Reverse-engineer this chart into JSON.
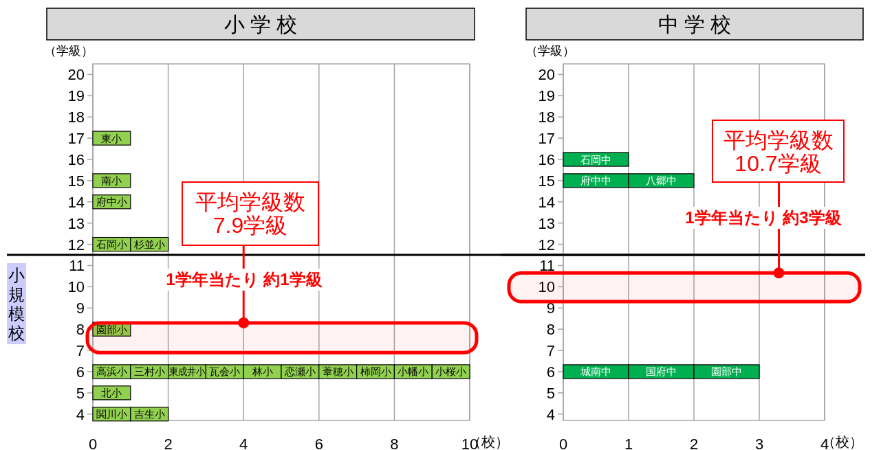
{
  "chart_data": [
    {
      "type": "bar",
      "orientation": "horizontal",
      "stacked": true,
      "title": "小 学 校",
      "ylabel": "（学級）",
      "xlabel": "（校）",
      "x": [
        17,
        15,
        14,
        12,
        8,
        6,
        5,
        4
      ],
      "series": [
        {
          "color": "#92d050",
          "values": [
            1,
            1,
            1,
            1,
            1,
            1,
            1,
            1
          ],
          "value_labels": [
            "東小",
            "南小",
            "府中小",
            "石岡小",
            "園部小",
            "高浜小",
            "北小",
            "関川小"
          ]
        },
        {
          "color": "#92d050",
          "values": [
            null,
            null,
            null,
            1,
            null,
            1,
            null,
            1
          ],
          "value_labels": [
            null,
            null,
            null,
            "杉並小",
            null,
            "三村小",
            null,
            "吉生小"
          ]
        },
        {
          "color": "#92d050",
          "values": [
            null,
            null,
            null,
            null,
            null,
            1,
            null,
            null
          ],
          "value_labels": [
            null,
            null,
            null,
            null,
            null,
            "東成井小",
            null,
            null
          ]
        },
        {
          "color": "#92d050",
          "values": [
            null,
            null,
            null,
            null,
            null,
            1,
            null,
            null
          ],
          "value_labels": [
            null,
            null,
            null,
            null,
            null,
            "瓦会小",
            null,
            null
          ]
        },
        {
          "color": "#92d050",
          "values": [
            null,
            null,
            null,
            null,
            null,
            1,
            null,
            null
          ],
          "value_labels": [
            null,
            null,
            null,
            null,
            null,
            "林小",
            null,
            null
          ]
        },
        {
          "color": "#92d050",
          "values": [
            null,
            null,
            null,
            null,
            null,
            1,
            null,
            null
          ],
          "value_labels": [
            null,
            null,
            null,
            null,
            null,
            "恋瀬小",
            null,
            null
          ]
        },
        {
          "color": "#92d050",
          "values": [
            null,
            null,
            null,
            null,
            null,
            1,
            null,
            null
          ],
          "value_labels": [
            null,
            null,
            null,
            null,
            null,
            "葦穂小",
            null,
            null
          ]
        },
        {
          "color": "#92d050",
          "values": [
            null,
            null,
            null,
            null,
            null,
            1,
            null,
            null
          ],
          "value_labels": [
            null,
            null,
            null,
            null,
            null,
            "柿岡小",
            null,
            null
          ]
        },
        {
          "color": "#92d050",
          "values": [
            null,
            null,
            null,
            null,
            null,
            1,
            null,
            null
          ],
          "value_labels": [
            null,
            null,
            null,
            null,
            null,
            "小幡小",
            null,
            null
          ]
        },
        {
          "color": "#92d050",
          "values": [
            null,
            null,
            null,
            null,
            null,
            1,
            null,
            null
          ],
          "value_labels": [
            null,
            null,
            null,
            null,
            null,
            "小桜小",
            null,
            null
          ]
        }
      ],
      "xlim": [
        0,
        10
      ],
      "xticks": [
        0,
        2,
        4,
        6,
        8,
        10
      ],
      "ylim": [
        3.7,
        20.5
      ],
      "yticks": [
        4,
        5,
        6,
        7,
        8,
        9,
        10,
        11,
        12,
        13,
        14,
        15,
        16,
        17,
        18,
        19,
        20
      ],
      "grid": "x",
      "ref_lines": [
        {
          "axis": "y",
          "value": 11.5,
          "label": "小規模校",
          "color": "#000000"
        }
      ],
      "bands": [
        {
          "axis": "y",
          "from": 6.9,
          "to": 8.3,
          "color": "#ff0000"
        }
      ],
      "annotations": [
        {
          "text": "平均学級数\n7.9学級",
          "x": 4,
          "y": 8.3
        },
        "1学年当たり 約1学級"
      ]
    },
    {
      "type": "bar",
      "orientation": "horizontal",
      "stacked": true,
      "title": "中 学 校",
      "ylabel": "（学級）",
      "xlabel": "（校）",
      "x": [
        16,
        15,
        6
      ],
      "series": [
        {
          "color": "#00b050",
          "values": [
            1,
            1,
            1
          ],
          "value_labels": [
            "石岡中",
            "府中中",
            "城南中"
          ]
        },
        {
          "color": "#00b050",
          "values": [
            null,
            1,
            1
          ],
          "value_labels": [
            null,
            "八郷中",
            "国府中"
          ]
        },
        {
          "color": "#00b050",
          "values": [
            null,
            null,
            1
          ],
          "value_labels": [
            null,
            null,
            "園部中"
          ]
        }
      ],
      "xlim": [
        0,
        4
      ],
      "xticks": [
        0,
        1,
        2,
        3,
        4
      ],
      "ylim": [
        3.7,
        20.5
      ],
      "yticks": [
        4,
        5,
        6,
        7,
        8,
        9,
        10,
        11,
        12,
        13,
        14,
        15,
        16,
        17,
        18,
        19,
        20
      ],
      "grid": "x",
      "ref_lines": [
        {
          "axis": "y",
          "value": 11.5,
          "color": "#000000"
        }
      ],
      "bands": [
        {
          "axis": "y",
          "from": 9.3,
          "to": 10.65,
          "color": "#ff0000"
        }
      ],
      "annotations": [
        {
          "text": "平均学級数\n10.7学級",
          "x": 3.3,
          "y": 10.65
        },
        "1学年当たり 約3学級"
      ]
    }
  ]
}
